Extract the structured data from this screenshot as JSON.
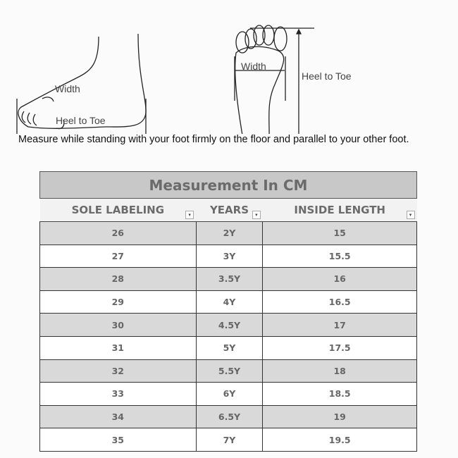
{
  "diagram": {
    "side_width": "Width",
    "side_heel_to_toe": "Heel to Toe",
    "sole_width": "Width",
    "sole_heel_to_toe": "Heel to Toe"
  },
  "instruction": "Measure while standing with your foot firmly on the floor and parallel to your other foot.",
  "table": {
    "title": "Measurement In CM",
    "headers": [
      "SOLE LABELING",
      "YEARS",
      "INSIDE LENGTH"
    ],
    "rows": [
      [
        "26",
        "2Y",
        "15"
      ],
      [
        "27",
        "3Y",
        "15.5"
      ],
      [
        "28",
        "3.5Y",
        "16"
      ],
      [
        "29",
        "4Y",
        "16.5"
      ],
      [
        "30",
        "4.5Y",
        "17"
      ],
      [
        "31",
        "5Y",
        "17.5"
      ],
      [
        "32",
        "5.5Y",
        "18"
      ],
      [
        "33",
        "6Y",
        "18.5"
      ],
      [
        "34",
        "6.5Y",
        "19"
      ],
      [
        "35",
        "7Y",
        "19.5"
      ]
    ]
  }
}
